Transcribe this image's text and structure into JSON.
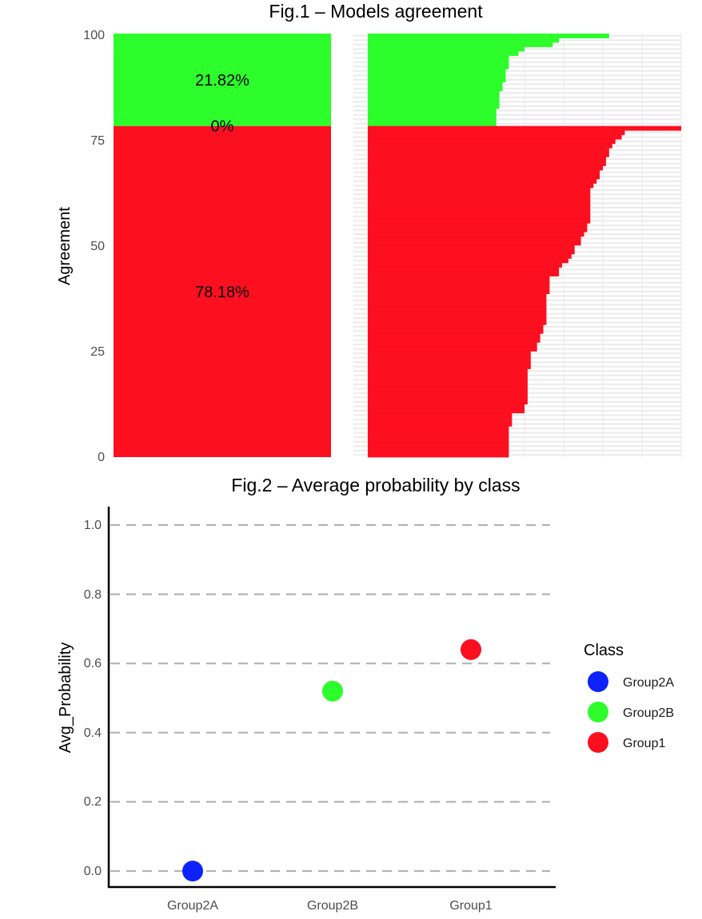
{
  "chart_data": [
    {
      "type": "bar",
      "title": "Fig.1 – Models agreement",
      "ylabel": "Agreement",
      "xlabel": "",
      "ylim": [
        0,
        100
      ],
      "yticks": [
        "0",
        "25",
        "50",
        "75",
        "100"
      ],
      "grid": false,
      "panels": [
        {
          "name": "stacked-share",
          "stacked": true,
          "segments": [
            {
              "group": "red",
              "from": 0,
              "to": 78.18,
              "label": "78.18%",
              "color": "#fc0f1f"
            },
            {
              "group": "between",
              "from": 78.18,
              "to": 78.18,
              "label": "0%",
              "color": "#000000"
            },
            {
              "group": "green",
              "from": 78.18,
              "to": 100,
              "label": "21.82%",
              "color": "#2dfd2b"
            }
          ]
        },
        {
          "name": "sorted-agreement-bars",
          "grid": true,
          "x_range": [
            0,
            100
          ],
          "green_bars_top_to_bottom": [
            77,
            61,
            59,
            50,
            48,
            45,
            45,
            45,
            44,
            44,
            44,
            43,
            43,
            42,
            42,
            42,
            42,
            41,
            41,
            41,
            41
          ],
          "red_bars_top_to_bottom": [
            100,
            82,
            81,
            79,
            78,
            77,
            77,
            76,
            76,
            75,
            74,
            74,
            73,
            72,
            71,
            71,
            71,
            71,
            71,
            71,
            71,
            71,
            70,
            70,
            69,
            68,
            68,
            66,
            66,
            65,
            64,
            62,
            61,
            61,
            58,
            58,
            58,
            58,
            57,
            57,
            57,
            57,
            57,
            57,
            57,
            56,
            56,
            55,
            55,
            54,
            54,
            52,
            52,
            52,
            52,
            51,
            51,
            51,
            51,
            51,
            51,
            51,
            51,
            50,
            50,
            46,
            46,
            46,
            45,
            45,
            45,
            45,
            45,
            45,
            45
          ],
          "colors": {
            "green": "#2dfd2b",
            "red": "#fc0f1f"
          }
        }
      ]
    },
    {
      "type": "scatter",
      "title": "Fig.2 – Average probability by class",
      "xlabel": "",
      "ylabel": "Avg_Probability",
      "ylim": [
        0,
        1
      ],
      "yticks": [
        "0.0",
        "0.2",
        "0.4",
        "0.6",
        "0.8",
        "1.0"
      ],
      "categories": [
        "Group2A",
        "Group2B",
        "Group1"
      ],
      "values": [
        0.0,
        0.52,
        0.64
      ],
      "colors": [
        "#0d22fc",
        "#2dfd2b",
        "#fc0f1f"
      ],
      "grid": "dashed horizontal",
      "legend": {
        "title": "Class",
        "position": "right",
        "items": [
          {
            "label": "Group2A",
            "color": "#0d22fc"
          },
          {
            "label": "Group2B",
            "color": "#2dfd2b"
          },
          {
            "label": "Group1",
            "color": "#fc0f1f"
          }
        ]
      }
    }
  ]
}
